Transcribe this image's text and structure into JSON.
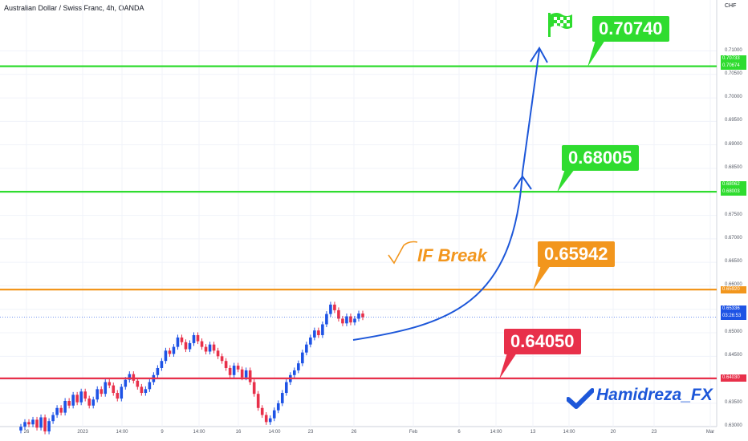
{
  "header": {
    "title": "Australian Dollar / Swiss Franc, 4h, OANDA",
    "currency": "CHF"
  },
  "colors": {
    "green": "#2fdc2f",
    "orange": "#f2961d",
    "red": "#e8304a",
    "blue": "#1d57d9",
    "candle_up": "#1e53e5",
    "candle_down": "#e8304a"
  },
  "icons": {
    "target": "checkered-flag-icon",
    "check": "check-mark-icon"
  },
  "chart_data": {
    "type": "candlestick",
    "price_ticks": [
      "0.71000",
      "0.70500",
      "0.70000",
      "0.69500",
      "0.69000",
      "0.68500",
      "0.68000",
      "0.67500",
      "0.67000",
      "0.66500",
      "0.66000",
      "0.65500",
      "0.65000",
      "0.64500",
      "0.64000",
      "0.63500",
      "0.63000"
    ],
    "time_ticks": [
      "26",
      "2023",
      "14:00",
      "9",
      "14:00",
      "16",
      "14:00",
      "23",
      "26",
      "Feb",
      "6",
      "14:00",
      "13",
      "14:00",
      "20",
      "23",
      "Mar"
    ],
    "ylim": [
      0.6285,
      0.7135
    ],
    "levels": [
      {
        "name": "target",
        "price": 0.70674,
        "callout": "0.70740",
        "axis_label": "0.70674",
        "axis_label2": "0.70733",
        "color": "#2fdc2f"
      },
      {
        "name": "resistance",
        "price": 0.68003,
        "callout": "0.68005",
        "axis_label": "0.68003",
        "axis_label2": "0.68062",
        "color": "#2fdc2f"
      },
      {
        "name": "breakout",
        "price": 0.6592,
        "callout": "0.65942",
        "axis_label": "0.65920",
        "color": "#f2961d"
      },
      {
        "name": "support",
        "price": 0.6403,
        "callout": "0.64050",
        "axis_label": "0.64030",
        "color": "#e8304a"
      }
    ],
    "current_price": "0.65336",
    "countdown": "03:26:53",
    "closes": [
      0.63,
      0.631,
      0.6305,
      0.6315,
      0.6298,
      0.632,
      0.629,
      0.6312,
      0.6325,
      0.634,
      0.633,
      0.6355,
      0.6345,
      0.6368,
      0.6352,
      0.6375,
      0.636,
      0.6345,
      0.6358,
      0.638,
      0.637,
      0.6395,
      0.6388,
      0.6372,
      0.636,
      0.6385,
      0.64,
      0.6412,
      0.6398,
      0.6385,
      0.6372,
      0.638,
      0.6395,
      0.641,
      0.6425,
      0.644,
      0.6462,
      0.6455,
      0.647,
      0.649,
      0.648,
      0.6465,
      0.6478,
      0.6495,
      0.6482,
      0.647,
      0.646,
      0.6475,
      0.6462,
      0.645,
      0.644,
      0.6425,
      0.641,
      0.643,
      0.6422,
      0.6405,
      0.642,
      0.6395,
      0.637,
      0.634,
      0.6325,
      0.631,
      0.6318,
      0.6335,
      0.635,
      0.6372,
      0.6395,
      0.641,
      0.642,
      0.6435,
      0.6458,
      0.6475,
      0.649,
      0.6505,
      0.6495,
      0.6518,
      0.654,
      0.656,
      0.6548,
      0.653,
      0.652,
      0.6535,
      0.6522,
      0.653,
      0.6541,
      0.6533
    ],
    "annotations": {
      "if_break": "IF Break",
      "watermark": "Hamidreza_FX"
    }
  }
}
